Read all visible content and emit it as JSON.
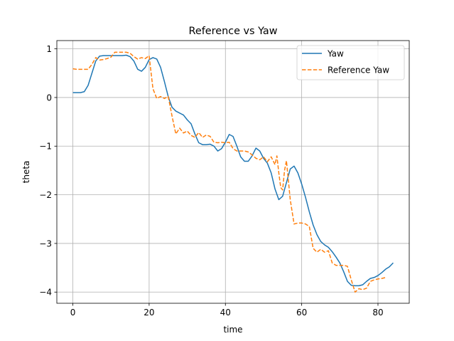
{
  "chart_data": {
    "type": "line",
    "title": "Reference vs Yaw",
    "xlabel": "time",
    "ylabel": "theta",
    "xlim": [
      -4.2,
      88.2
    ],
    "ylim": [
      -4.23,
      1.17
    ],
    "xticks": [
      0,
      20,
      40,
      60,
      80
    ],
    "yticks": [
      1,
      0,
      -1,
      -2,
      -3,
      -4
    ],
    "xtick_labels": [
      "0",
      "20",
      "40",
      "60",
      "80"
    ],
    "ytick_labels": [
      "1",
      "0",
      "−1",
      "−2",
      "−3",
      "−4"
    ],
    "grid": true,
    "legend_position": "top-right",
    "series": [
      {
        "name": "Yaw",
        "color": "#1f77b4",
        "style": "solid",
        "x": [
          0,
          1,
          2,
          3,
          4,
          5,
          6,
          7,
          8,
          9,
          10,
          11,
          12,
          13,
          14,
          15,
          16,
          17,
          18,
          19,
          20,
          21,
          22,
          23,
          24,
          25,
          26,
          27,
          28,
          29,
          30,
          31,
          32,
          33,
          34,
          35,
          36,
          37,
          38,
          39,
          40,
          41,
          42,
          43,
          44,
          45,
          46,
          47,
          48,
          49,
          50,
          51,
          52,
          53,
          54,
          55,
          56,
          57,
          58,
          59,
          60,
          61,
          62,
          63,
          64,
          65,
          66,
          67,
          68,
          69,
          70,
          71,
          72,
          73,
          74,
          75,
          76,
          77,
          78,
          79,
          80,
          81,
          82,
          83,
          84
        ],
        "y": [
          0.1,
          0.1,
          0.1,
          0.12,
          0.25,
          0.5,
          0.75,
          0.85,
          0.86,
          0.86,
          0.86,
          0.86,
          0.86,
          0.86,
          0.87,
          0.84,
          0.75,
          0.58,
          0.54,
          0.62,
          0.78,
          0.82,
          0.79,
          0.62,
          0.33,
          0.02,
          -0.2,
          -0.28,
          -0.32,
          -0.36,
          -0.46,
          -0.54,
          -0.75,
          -0.93,
          -0.97,
          -0.97,
          -0.96,
          -1.0,
          -1.1,
          -1.05,
          -0.92,
          -0.76,
          -0.8,
          -1.0,
          -1.22,
          -1.31,
          -1.31,
          -1.2,
          -1.04,
          -1.1,
          -1.25,
          -1.35,
          -1.55,
          -1.88,
          -2.1,
          -2.03,
          -1.75,
          -1.47,
          -1.41,
          -1.55,
          -1.78,
          -2.05,
          -2.35,
          -2.62,
          -2.82,
          -2.96,
          -3.03,
          -3.08,
          -3.17,
          -3.28,
          -3.4,
          -3.58,
          -3.78,
          -3.86,
          -3.87,
          -3.87,
          -3.85,
          -3.78,
          -3.72,
          -3.7,
          -3.66,
          -3.6,
          -3.53,
          -3.48,
          -3.4
        ]
      },
      {
        "name": "Reference Yaw",
        "color": "#ff7f0e",
        "style": "dashed",
        "x": [
          0,
          1,
          2,
          3,
          4,
          5,
          6,
          7,
          8,
          9,
          10,
          11,
          12,
          13,
          14,
          15,
          16,
          17,
          18,
          19,
          20,
          21,
          22,
          23,
          24,
          25,
          26,
          27,
          28,
          29,
          30,
          31,
          32,
          33,
          34,
          35,
          36,
          37,
          38,
          39,
          40,
          41,
          42,
          43,
          44,
          45,
          46,
          47,
          48,
          49,
          50,
          51,
          52,
          53,
          53.5,
          54,
          54.5,
          55,
          55.5,
          56,
          56.5,
          57,
          58,
          59,
          60,
          61,
          62,
          63,
          64,
          65,
          66,
          67,
          68,
          69,
          70,
          71,
          72,
          73,
          74,
          75,
          76,
          77,
          78,
          79,
          80,
          81,
          82
        ],
        "y": [
          0.59,
          0.58,
          0.58,
          0.58,
          0.58,
          0.68,
          0.82,
          0.77,
          0.78,
          0.8,
          0.83,
          0.93,
          0.93,
          0.93,
          0.93,
          0.91,
          0.84,
          0.79,
          0.82,
          0.8,
          0.86,
          0.18,
          -0.02,
          0.02,
          -0.02,
          0.02,
          -0.38,
          -0.75,
          -0.63,
          -0.73,
          -0.69,
          -0.78,
          -0.82,
          -0.72,
          -0.82,
          -0.77,
          -0.8,
          -0.92,
          -0.93,
          -0.92,
          -0.93,
          -0.92,
          -1.05,
          -1.1,
          -1.1,
          -1.1,
          -1.12,
          -1.18,
          -1.25,
          -1.28,
          -1.22,
          -1.32,
          -1.22,
          -1.38,
          -1.2,
          -1.55,
          -1.85,
          -1.9,
          -1.5,
          -1.3,
          -1.7,
          -2.1,
          -2.6,
          -2.58,
          -2.58,
          -2.6,
          -2.65,
          -3.1,
          -3.18,
          -3.12,
          -3.18,
          -3.15,
          -3.4,
          -3.45,
          -3.45,
          -3.45,
          -3.47,
          -3.75,
          -4.0,
          -3.93,
          -3.95,
          -3.92,
          -3.78,
          -3.75,
          -3.73,
          -3.72,
          -3.7
        ]
      }
    ]
  }
}
